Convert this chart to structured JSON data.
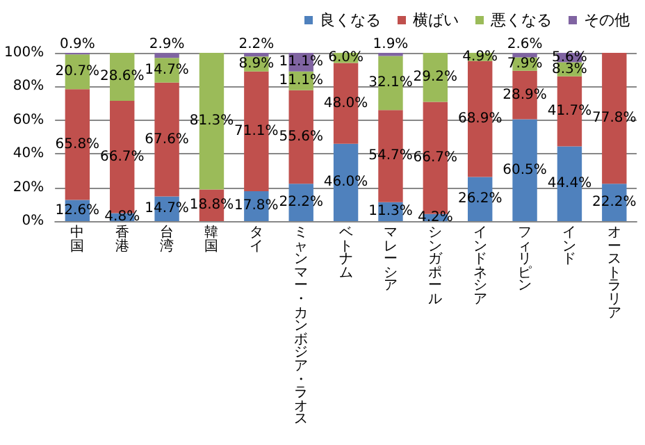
{
  "chart_data": {
    "type": "bar",
    "stacked": true,
    "categories": [
      "中国",
      "香港",
      "台湾",
      "韓国",
      "タイ",
      "ミャンマー・カンボジア・ラオス",
      "ベトナム",
      "マレーシア",
      "シンガポール",
      "インドネシア",
      "フィリピン",
      "インド",
      "オーストラリア"
    ],
    "series": [
      {
        "name": "良くなる",
        "color": "#4f81bd",
        "values": [
          12.6,
          4.8,
          14.7,
          null,
          17.8,
          22.2,
          46.0,
          11.3,
          4.2,
          26.2,
          60.5,
          44.4,
          22.2
        ],
        "value_labels": [
          "12.6%",
          "4.8%",
          "14.7%",
          null,
          "17.8%",
          "22.2%",
          "46.0%",
          "11.3%",
          "4.2%",
          "26.2%",
          "60.5%",
          "44.4%",
          "22.2%"
        ]
      },
      {
        "name": "横ばい",
        "color": "#c0504d",
        "values": [
          65.8,
          66.7,
          67.6,
          18.8,
          71.1,
          55.6,
          48.0,
          54.7,
          66.7,
          68.9,
          28.9,
          41.7,
          77.8
        ],
        "value_labels": [
          "65.8%",
          "66.7%",
          "67.6%",
          "18.8%",
          "71.1%",
          "55.6%",
          "48.0%",
          "54.7%",
          "66.7%",
          "68.9%",
          "28.9%",
          "41.7%",
          "77.8%"
        ]
      },
      {
        "name": "悪くなる",
        "color": "#9bbb59",
        "values": [
          20.7,
          28.6,
          14.7,
          81.3,
          8.9,
          11.1,
          6.0,
          32.1,
          29.2,
          4.9,
          7.9,
          8.3,
          null
        ],
        "value_labels": [
          "20.7%",
          "28.6%",
          "14.7%",
          "81.3%",
          "8.9%",
          "11.1%",
          "6.0%",
          "32.1%",
          "29.2%",
          "4.9%",
          "7.9%",
          "8.3%",
          null
        ]
      },
      {
        "name": "その他",
        "color": "#8064a2",
        "values": [
          0.9,
          null,
          2.9,
          null,
          2.2,
          11.1,
          null,
          1.9,
          null,
          null,
          2.6,
          5.6,
          null
        ],
        "value_labels": [
          "0.9%",
          null,
          "2.9%",
          null,
          "2.2%",
          "11.1%",
          null,
          "1.9%",
          null,
          null,
          "2.6%",
          "5.6%",
          null
        ]
      }
    ],
    "ylim": [
      0,
      100
    ],
    "yticks": [
      {
        "value": 0,
        "label": "0%"
      },
      {
        "value": 20,
        "label": "20%"
      },
      {
        "value": 40,
        "label": "40%"
      },
      {
        "value": 60,
        "label": "60%"
      },
      {
        "value": 80,
        "label": "80%"
      },
      {
        "value": 100,
        "label": "100%"
      }
    ],
    "grid": "y",
    "legend": "top right"
  }
}
